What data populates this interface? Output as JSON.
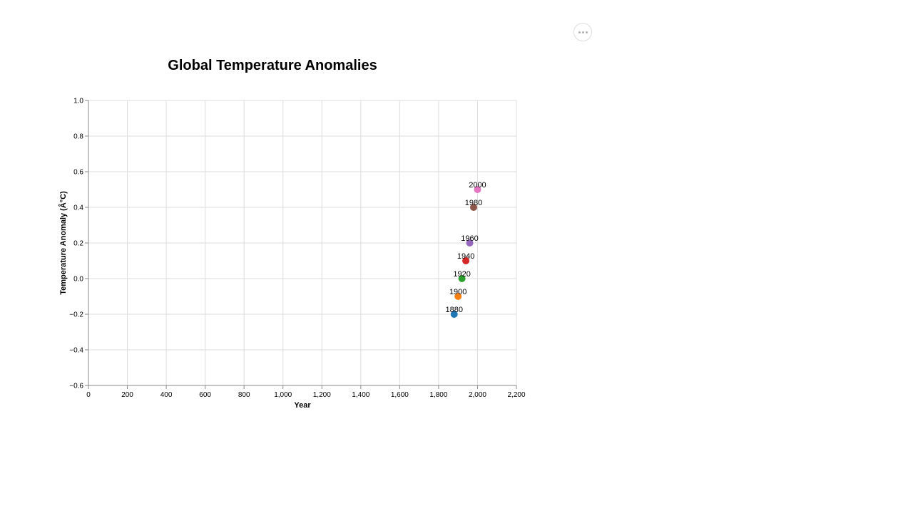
{
  "menu": {
    "icon": "more-horizontal-icon"
  },
  "chart_data": {
    "type": "scatter",
    "title": "Global Temperature Anomalies",
    "xlabel": "Year",
    "ylabel": "Temperature Anomaly (Â°C)",
    "xlim": [
      0,
      2200
    ],
    "ylim": [
      -0.6,
      1.0
    ],
    "x_ticks": [
      "0",
      "200",
      "400",
      "600",
      "800",
      "1,000",
      "1,200",
      "1,400",
      "1,600",
      "1,800",
      "2,000",
      "2,200"
    ],
    "x_tick_values": [
      0,
      200,
      400,
      600,
      800,
      1000,
      1200,
      1400,
      1600,
      1800,
      2000,
      2200
    ],
    "y_ticks": [
      "1.0",
      "0.8",
      "0.6",
      "0.4",
      "0.2",
      "0.0",
      "−0.2",
      "−0.4",
      "−0.6"
    ],
    "y_tick_values": [
      1.0,
      0.8,
      0.6,
      0.4,
      0.2,
      0.0,
      -0.2,
      -0.4,
      -0.6
    ],
    "grid": true,
    "points": [
      {
        "x": 1880,
        "y": -0.2,
        "label": "1880",
        "color": "#1f77b4"
      },
      {
        "x": 1900,
        "y": -0.1,
        "label": "1900",
        "color": "#ff7f0e"
      },
      {
        "x": 1920,
        "y": 0.0,
        "label": "1920",
        "color": "#2ca02c"
      },
      {
        "x": 1940,
        "y": 0.1,
        "label": "1940",
        "color": "#d62728"
      },
      {
        "x": 1960,
        "y": 0.2,
        "label": "1960",
        "color": "#9467bd"
      },
      {
        "x": 1980,
        "y": 0.4,
        "label": "1980",
        "color": "#8c564b"
      },
      {
        "x": 2000,
        "y": 0.5,
        "label": "2000",
        "color": "#e377c2"
      }
    ]
  }
}
